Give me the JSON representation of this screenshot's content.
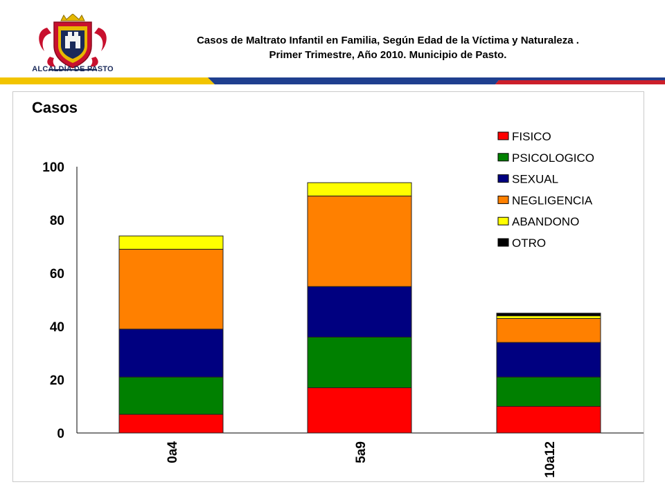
{
  "header": {
    "logo_text": "ALCALDÍA DE PASTO",
    "title_line1": "Casos de Maltrato Infantil  en Familia, Según Edad de la Víctima y Naturaleza .",
    "title_line2": "Primer Trimestre, Año 2010. Municipio de Pasto."
  },
  "colors": {
    "stripe_yellow": "#f2c400",
    "stripe_blue": "#1f3f8f",
    "stripe_red": "#cc1f2a",
    "logo_red": "#c8102e",
    "logo_gold": "#e6b800",
    "logo_blue": "#1a2a5a"
  },
  "chart_data": {
    "type": "bar",
    "stacked": true,
    "ylabel": "Casos",
    "ylim": [
      0,
      100
    ],
    "yticks": [
      0,
      20,
      40,
      60,
      80,
      100
    ],
    "categories": [
      "0a4",
      "5a9",
      "10a12"
    ],
    "legend_position": "top-right",
    "grid": false,
    "series": [
      {
        "name": "FISICO",
        "color": "#ff0000",
        "values": [
          7,
          17,
          10
        ]
      },
      {
        "name": "PSICOLOGICO",
        "color": "#008000",
        "values": [
          14,
          19,
          11
        ]
      },
      {
        "name": "SEXUAL",
        "color": "#000080",
        "values": [
          18,
          19,
          13
        ]
      },
      {
        "name": "NEGLIGENCIA",
        "color": "#ff8000",
        "values": [
          30,
          34,
          9
        ]
      },
      {
        "name": "ABANDONO",
        "color": "#ffff00",
        "values": [
          5,
          5,
          1
        ]
      },
      {
        "name": "OTRO",
        "color": "#000000",
        "values": [
          0,
          0,
          1
        ]
      }
    ]
  }
}
